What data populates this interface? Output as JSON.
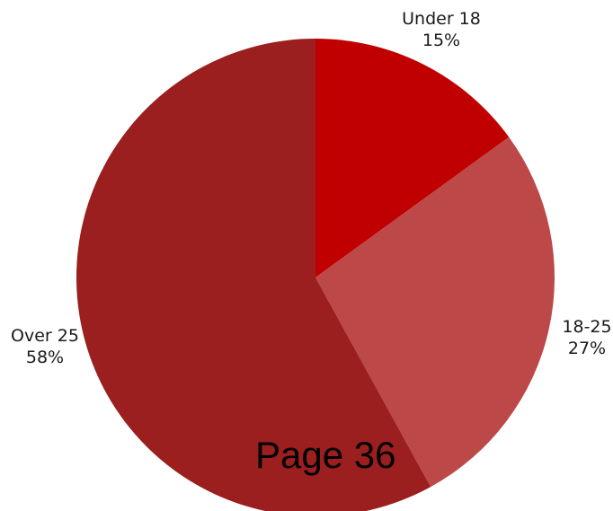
{
  "page_label": "Page 36",
  "chart_data": {
    "type": "pie",
    "slices": [
      {
        "label": "Under 18",
        "percent_text": "15%",
        "value": 15,
        "color": "#C00000"
      },
      {
        "label": "18-25",
        "percent_text": "27%",
        "value": 27,
        "color": "#BD4848"
      },
      {
        "label": "Over 25",
        "percent_text": "58%",
        "value": 58,
        "color": "#9B1F1F"
      }
    ],
    "start_angle_deg": 0,
    "direction": "clockwise",
    "legend": "none"
  }
}
